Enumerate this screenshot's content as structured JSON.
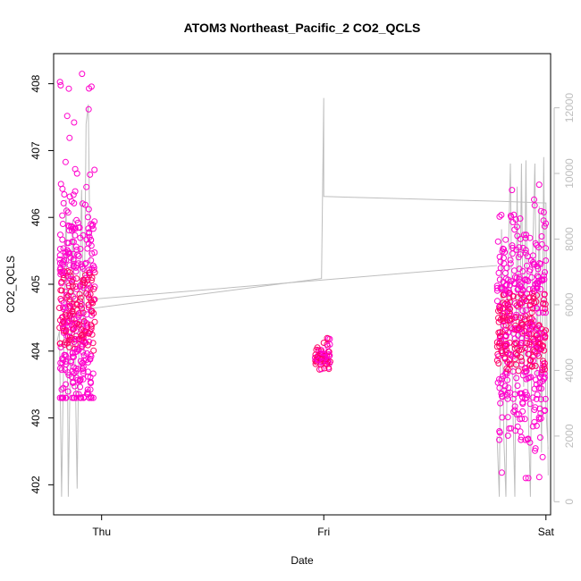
{
  "chart_data": {
    "type": "scatter",
    "title": "ATOM3 Northeast_Pacific_2 CO2_QCLS",
    "xlabel": "Date",
    "ylabel": "CO2_QCLS",
    "x_ticks": [
      "Thu",
      "Fri",
      "Sat"
    ],
    "x_tick_positions": [
      0,
      1,
      2
    ],
    "xlim": [
      -0.216,
      2.021
    ],
    "ylim": [
      401.55,
      408.45
    ],
    "y_ticks": [
      402,
      403,
      404,
      405,
      406,
      407,
      408
    ],
    "y_right_ticks": [
      0,
      2000,
      4000,
      6000,
      8000,
      10000,
      12000
    ],
    "y_right_lim": [
      -400,
      13650
    ],
    "grid": false,
    "colors": {
      "points": "#ff00cc",
      "points_dense": "#ff0066",
      "altitude_line": "#bebebe",
      "axis": "#000000",
      "right_axis": "#bebebe"
    },
    "series": [
      {
        "type": "scatter",
        "axis": "left",
        "clusters": [
          {
            "x_start": -0.19,
            "x_end": -0.03,
            "y_center": 404.6,
            "y_min": 403.3,
            "y_max": 408.3,
            "count": 420
          },
          {
            "x_start": 0.96,
            "x_end": 1.03,
            "y_center": 403.9,
            "y_min": 403.7,
            "y_max": 404.2,
            "count": 70
          },
          {
            "x_start": 1.78,
            "x_end": 2.0,
            "y_center": 404.3,
            "y_min": 402.1,
            "y_max": 406.6,
            "count": 520
          }
        ]
      },
      {
        "type": "line",
        "axis": "right",
        "points": [
          [
            -0.2,
            4900
          ],
          [
            -0.19,
            5200
          ],
          [
            -0.18,
            150
          ],
          [
            -0.17,
            4800
          ],
          [
            -0.16,
            9200
          ],
          [
            -0.155,
            5100
          ],
          [
            -0.15,
            150
          ],
          [
            -0.14,
            4700
          ],
          [
            -0.13,
            8600
          ],
          [
            -0.12,
            4500
          ],
          [
            -0.11,
            400
          ],
          [
            -0.1,
            6000
          ],
          [
            -0.09,
            9500
          ],
          [
            -0.08,
            4400
          ],
          [
            -0.07,
            11500
          ],
          [
            -0.06,
            12100
          ],
          [
            -0.05,
            5800
          ],
          [
            -0.04,
            5900
          ],
          [
            -0.03,
            5900
          ],
          [
            0.99,
            6800
          ],
          [
            1.0,
            12300
          ],
          [
            1.0,
            9300
          ],
          [
            1.8,
            9150
          ],
          [
            2.0,
            9100
          ],
          [
            2.01,
            800
          ]
        ],
        "segments_sat": [
          [
            1.78,
            2000
          ],
          [
            1.79,
            150
          ],
          [
            1.8,
            8300
          ],
          [
            1.81,
            2000
          ],
          [
            1.82,
            150
          ],
          [
            1.83,
            7200
          ],
          [
            1.84,
            10300
          ],
          [
            1.85,
            3200
          ],
          [
            1.86,
            150
          ],
          [
            1.87,
            9600
          ],
          [
            1.88,
            4000
          ],
          [
            1.89,
            10300
          ],
          [
            1.9,
            3500
          ],
          [
            1.91,
            10400
          ],
          [
            1.92,
            2800
          ],
          [
            1.93,
            150
          ],
          [
            1.94,
            7500
          ],
          [
            1.95,
            10300
          ],
          [
            1.96,
            3800
          ],
          [
            1.97,
            9000
          ],
          [
            1.98,
            1500
          ],
          [
            1.99,
            10500
          ],
          [
            2.0,
            2800
          ],
          [
            2.01,
            1600
          ]
        ]
      }
    ]
  }
}
